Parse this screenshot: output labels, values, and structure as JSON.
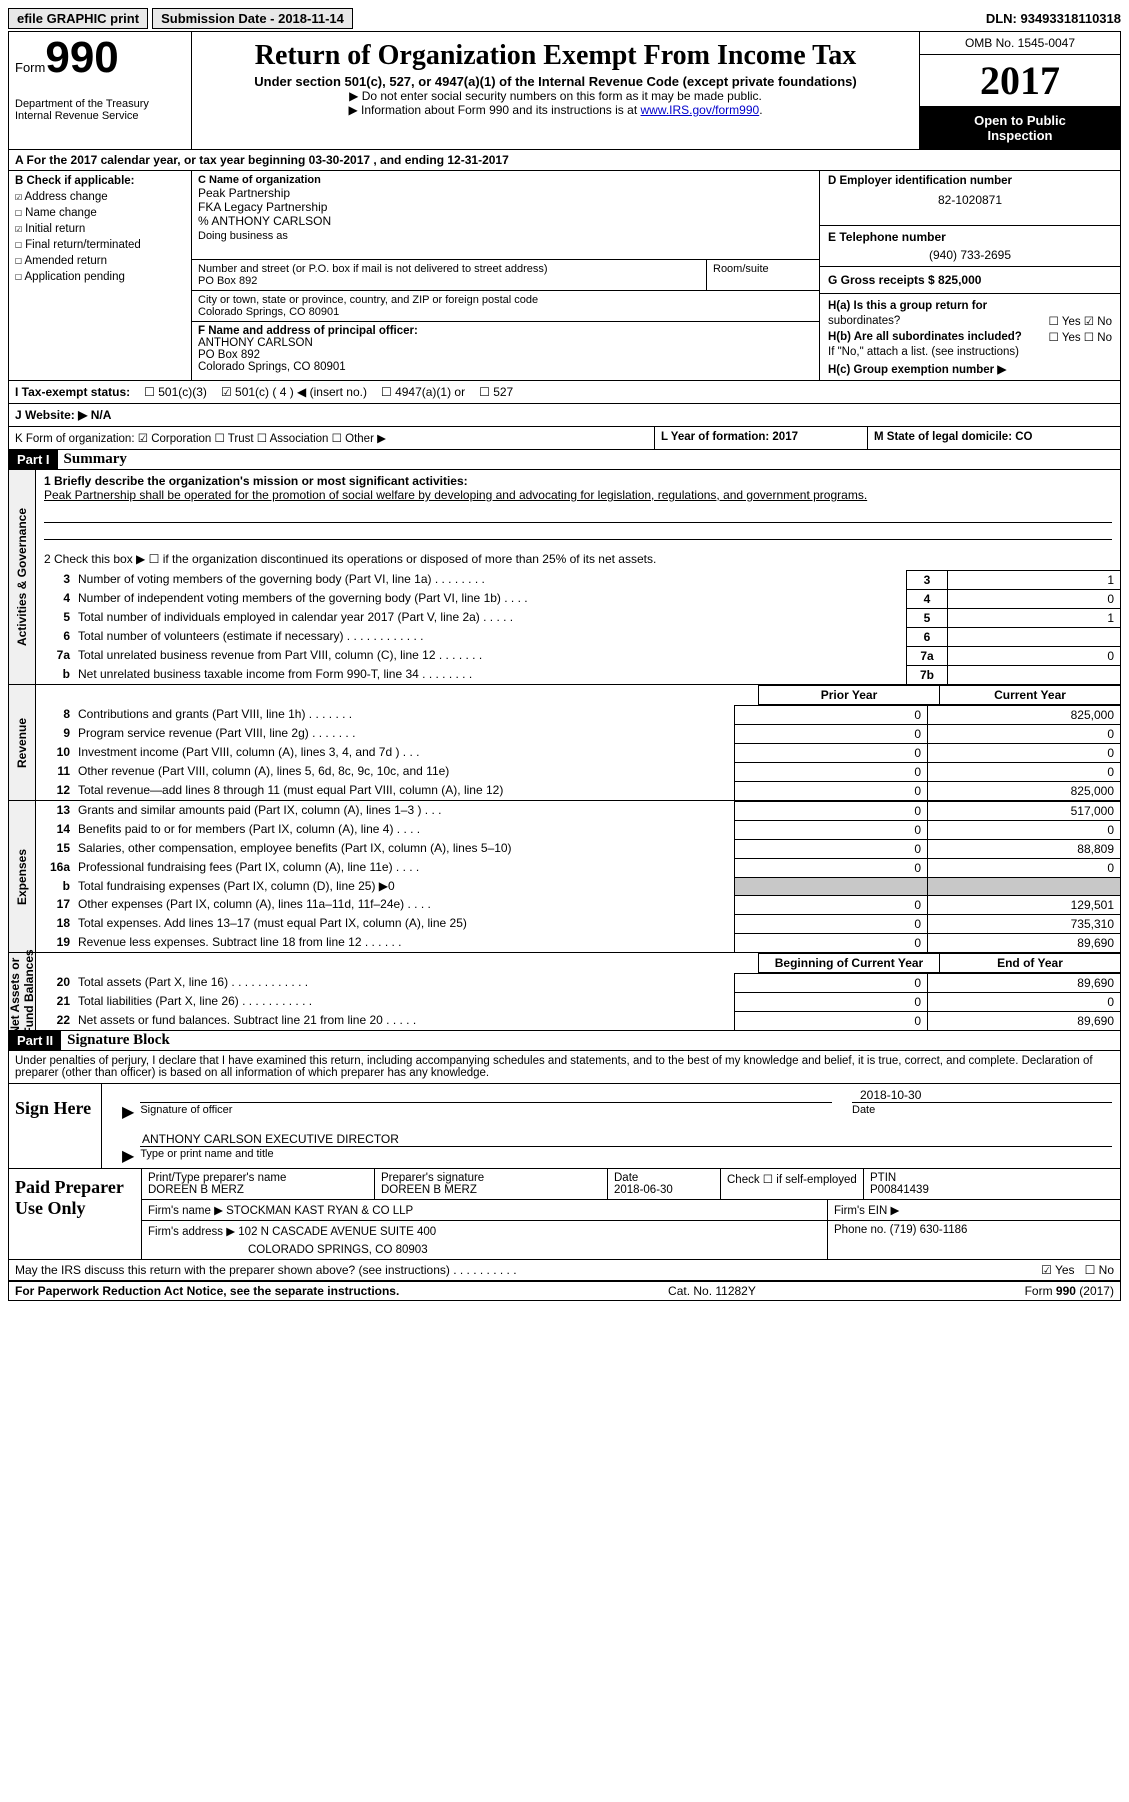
{
  "topbar": {
    "efile": "efile GRAPHIC print",
    "submission": "Submission Date - 2018-11-14",
    "dln": "DLN: 93493318110318"
  },
  "header": {
    "form_word": "Form",
    "form_num": "990",
    "dept": "Department of the Treasury\nInternal Revenue Service",
    "title": "Return of Organization Exempt From Income Tax",
    "sub1": "Under section 501(c), 527, or 4947(a)(1) of the Internal Revenue Code (except private foundations)",
    "bullet1": "Do not enter social security numbers on this form as it may be made public.",
    "bullet2_pre": "Information about Form 990 and its instructions is at ",
    "bullet2_link": "www.IRS.gov/form990",
    "omb": "OMB No. 1545-0047",
    "year": "2017",
    "open1": "Open to Public",
    "open2": "Inspection"
  },
  "rowA": "A  For the 2017 calendar year, or tax year beginning 03-30-2017   , and ending 12-31-2017",
  "boxB": {
    "title": "B Check if applicable:",
    "items": [
      {
        "chk": "☑",
        "lbl": "Address change"
      },
      {
        "chk": "☐",
        "lbl": "Name change"
      },
      {
        "chk": "☑",
        "lbl": "Initial return"
      },
      {
        "chk": "☐",
        "lbl": "Final return/terminated"
      },
      {
        "chk": "☐",
        "lbl": "Amended return"
      },
      {
        "chk": "☐",
        "lbl": "Application pending"
      }
    ]
  },
  "boxC": {
    "lbl": "C Name of organization",
    "name1": "Peak Partnership",
    "name2": "FKA Legacy Partnership",
    "name3": "% ANTHONY CARLSON",
    "dba_lbl": "Doing business as",
    "addr_lbl": "Number and street (or P.O. box if mail is not delivered to street address)",
    "addr": "PO Box 892",
    "room_lbl": "Room/suite",
    "city_lbl": "City or town, state or province, country, and ZIP or foreign postal code",
    "city": "Colorado Springs, CO  80901"
  },
  "boxF": {
    "lbl": "F Name and address of principal officer:",
    "l1": "ANTHONY CARLSON",
    "l2": "PO Box 892",
    "l3": "Colorado Springs, CO  80901"
  },
  "boxD": {
    "lbl": "D Employer identification number",
    "val": "82-1020871"
  },
  "boxE": {
    "lbl": "E Telephone number",
    "val": "(940) 733-2695"
  },
  "boxG": {
    "lbl": "G Gross receipts $ 825,000"
  },
  "boxH": {
    "a": "H(a)  Is this a group return for",
    "a2": "subordinates?",
    "b": "H(b)  Are all subordinates included?",
    "bnote": "If \"No,\" attach a list. (see instructions)",
    "c": "H(c)  Group exemption number ▶",
    "yes": "Yes",
    "no": "No"
  },
  "rowI": {
    "lbl": "I  Tax-exempt status:",
    "o1": "501(c)(3)",
    "o2": "501(c) ( 4 ) ◀ (insert no.)",
    "o3": "4947(a)(1) or",
    "o4": "527"
  },
  "rowJ": "J  Website: ▶  N/A",
  "rowK": {
    "k1": "K Form of organization:   ☑ Corporation  ☐ Trust  ☐ Association  ☐ Other ▶",
    "k2": "L Year of formation: 2017",
    "k3": "M State of legal domicile: CO"
  },
  "part1": {
    "hdr": "Part I",
    "title": "Summary",
    "q1": "1  Briefly describe the organization's mission or most significant activities:",
    "q1text": "Peak Partnership shall be operated for the promotion of social welfare by developing and advocating for legislation, regulations, and government programs.",
    "q2": "2  Check this box ▶ ☐  if the organization discontinued its operations or disposed of more than 25% of its net assets.",
    "rows_gov": [
      {
        "n": "3",
        "t": "Number of voting members of the governing body (Part VI, line 1a)  .   .   .   .   .   .   .   .",
        "box": "3",
        "val": "1"
      },
      {
        "n": "4",
        "t": "Number of independent voting members of the governing body (Part VI, line 1b)   .   .   .   .",
        "box": "4",
        "val": "0"
      },
      {
        "n": "5",
        "t": "Total number of individuals employed in calendar year 2017 (Part V, line 2a)   .   .   .   .   .",
        "box": "5",
        "val": "1"
      },
      {
        "n": "6",
        "t": "Total number of volunteers (estimate if necessary)   .   .   .   .   .   .   .   .   .   .   .   .",
        "box": "6",
        "val": ""
      },
      {
        "n": "7a",
        "t": "Total unrelated business revenue from Part VIII, column (C), line 12   .   .   .   .   .   .   .",
        "box": "7a",
        "val": "0"
      },
      {
        "n": "b",
        "t": "Net unrelated business taxable income from Form 990-T, line 34   .   .   .   .   .   .   .   .",
        "box": "7b",
        "val": ""
      }
    ],
    "hdr_prior": "Prior Year",
    "hdr_curr": "Current Year",
    "rows_rev": [
      {
        "n": "8",
        "t": "Contributions and grants (Part VIII, line 1h)   .   .   .   .   .   .   .",
        "c1": "0",
        "c2": "825,000"
      },
      {
        "n": "9",
        "t": "Program service revenue (Part VIII, line 2g)   .   .   .   .   .   .   .",
        "c1": "0",
        "c2": "0"
      },
      {
        "n": "10",
        "t": "Investment income (Part VIII, column (A), lines 3, 4, and 7d )   .   .   .",
        "c1": "0",
        "c2": "0"
      },
      {
        "n": "11",
        "t": "Other revenue (Part VIII, column (A), lines 5, 6d, 8c, 9c, 10c, and 11e)",
        "c1": "0",
        "c2": "0"
      },
      {
        "n": "12",
        "t": "Total revenue—add lines 8 through 11 (must equal Part VIII, column (A), line 12)",
        "c1": "0",
        "c2": "825,000"
      }
    ],
    "rows_exp": [
      {
        "n": "13",
        "t": "Grants and similar amounts paid (Part IX, column (A), lines 1–3 )   .   .   .",
        "c1": "0",
        "c2": "517,000"
      },
      {
        "n": "14",
        "t": "Benefits paid to or for members (Part IX, column (A), line 4)   .   .   .   .",
        "c1": "0",
        "c2": "0"
      },
      {
        "n": "15",
        "t": "Salaries, other compensation, employee benefits (Part IX, column (A), lines 5–10)",
        "c1": "0",
        "c2": "88,809"
      },
      {
        "n": "16a",
        "t": "Professional fundraising fees (Part IX, column (A), line 11e)   .   .   .   .",
        "c1": "0",
        "c2": "0"
      },
      {
        "n": "b",
        "t": "Total fundraising expenses (Part IX, column (D), line 25) ▶0",
        "c1": "shade",
        "c2": "shade"
      },
      {
        "n": "17",
        "t": "Other expenses (Part IX, column (A), lines 11a–11d, 11f–24e)   .   .   .   .",
        "c1": "0",
        "c2": "129,501"
      },
      {
        "n": "18",
        "t": "Total expenses. Add lines 13–17 (must equal Part IX, column (A), line 25)",
        "c1": "0",
        "c2": "735,310"
      },
      {
        "n": "19",
        "t": "Revenue less expenses. Subtract line 18 from line 12   .   .   .   .   .   .",
        "c1": "0",
        "c2": "89,690"
      }
    ],
    "hdr_beg": "Beginning of Current Year",
    "hdr_end": "End of Year",
    "rows_net": [
      {
        "n": "20",
        "t": "Total assets (Part X, line 16)   .   .   .   .   .   .   .   .   .   .   .   .",
        "c1": "0",
        "c2": "89,690"
      },
      {
        "n": "21",
        "t": "Total liabilities (Part X, line 26)   .   .   .   .   .   .   .   .   .   .   .",
        "c1": "0",
        "c2": "0"
      },
      {
        "n": "22",
        "t": "Net assets or fund balances. Subtract line 21 from line 20   .   .   .   .   .",
        "c1": "0",
        "c2": "89,690"
      }
    ]
  },
  "part2": {
    "hdr": "Part II",
    "title": "Signature Block",
    "text": "Under penalties of perjury, I declare that I have examined this return, including accompanying schedules and statements, and to the best of my knowledge and belief, it is true, correct, and complete. Declaration of preparer (other than officer) is based on all information of which preparer has any knowledge."
  },
  "sign": {
    "left": "Sign Here",
    "sig_lbl": "Signature of officer",
    "date_val": "2018-10-30",
    "date_lbl": "Date",
    "name": "ANTHONY CARLSON  EXECUTIVE DIRECTOR",
    "name_lbl": "Type or print name and title"
  },
  "paid": {
    "left": "Paid Preparer Use Only",
    "r1": {
      "a_lbl": "Print/Type preparer's name",
      "a": "DOREEN B MERZ",
      "b_lbl": "Preparer's signature",
      "b": "DOREEN B MERZ",
      "c_lbl": "Date",
      "c": "2018-06-30",
      "d": "Check ☐ if self-employed",
      "e_lbl": "PTIN",
      "e": "P00841439"
    },
    "r2": {
      "a": "Firm's name    ▶  STOCKMAN KAST RYAN & CO LLP",
      "b": "Firm's EIN ▶"
    },
    "r3": {
      "a": "Firm's address ▶ 102 N CASCADE AVENUE SUITE 400",
      "a2": "COLORADO SPRINGS, CO  80903",
      "b": "Phone no. (719) 630-1186"
    }
  },
  "irs_discuss": {
    "t": "May the IRS discuss this return with the preparer shown above? (see instructions)   .   .   .   .   .   .   .   .   .   .",
    "yes": "☑ Yes",
    "no": "☐ No"
  },
  "footer": {
    "l": "For Paperwork Reduction Act Notice, see the separate instructions.",
    "m": "Cat. No. 11282Y",
    "r": "Form 990 (2017)"
  }
}
